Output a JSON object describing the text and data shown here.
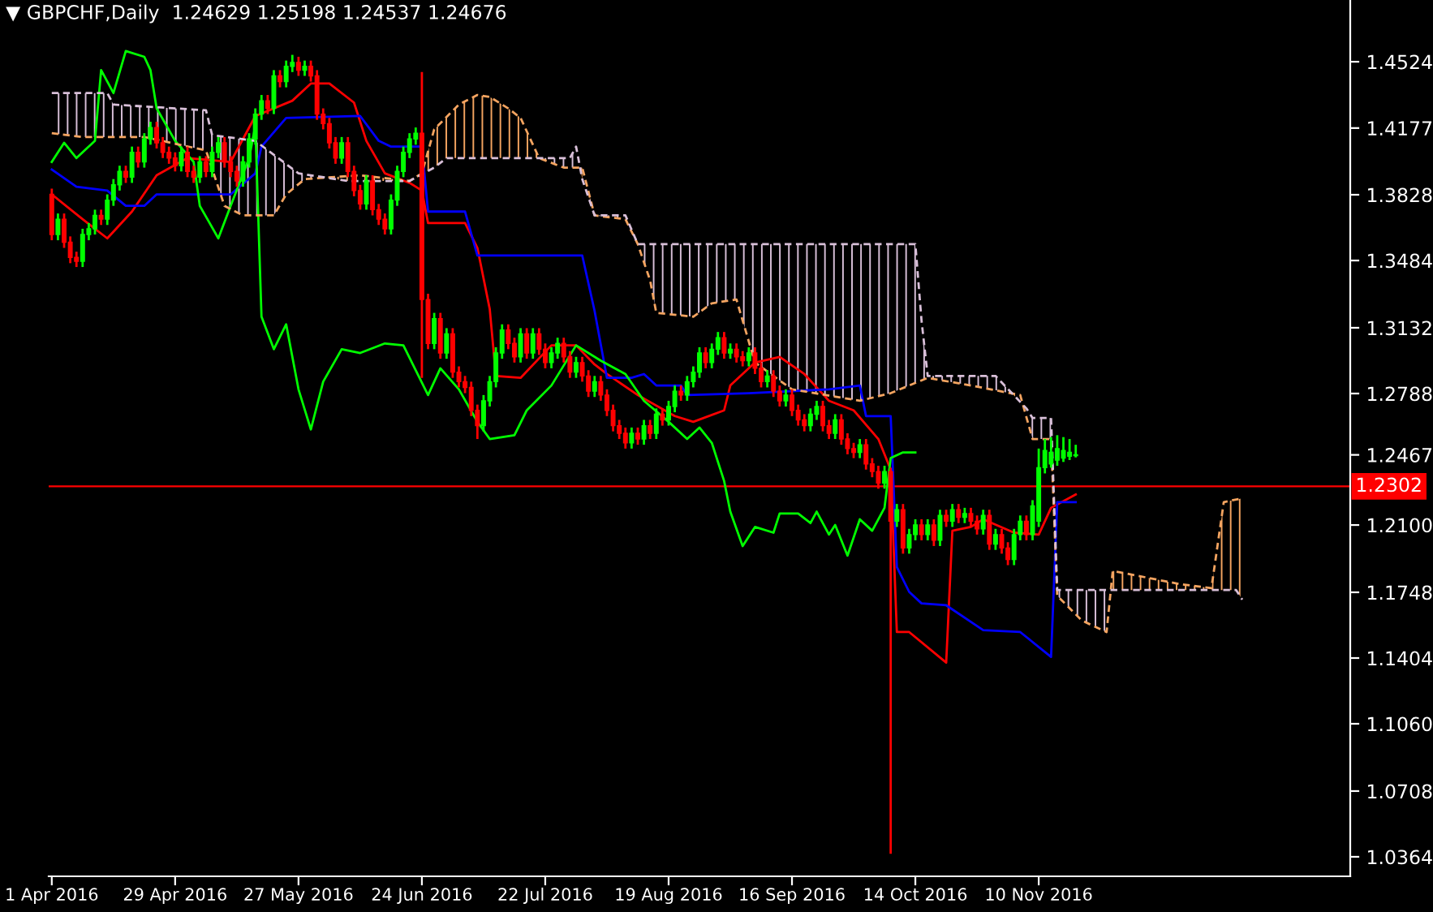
{
  "chart_data": {
    "type": "candlestick",
    "title": "▼ GBPCHF,Daily  1.24629 1.25198 1.24537 1.24676",
    "categories": [
      "1 Apr 2016",
      null,
      null,
      null,
      null,
      null,
      null,
      null,
      null,
      null,
      null,
      null,
      null,
      null,
      null,
      null,
      null,
      null,
      null,
      null,
      "29 Apr 2016",
      null,
      null,
      null,
      null,
      null,
      null,
      null,
      null,
      null,
      null,
      null,
      null,
      null,
      null,
      null,
      null,
      null,
      null,
      null,
      "27 May 2016",
      null,
      null,
      null,
      null,
      null,
      null,
      null,
      null,
      null,
      null,
      null,
      null,
      null,
      null,
      null,
      null,
      null,
      null,
      null,
      "24 Jun 2016",
      null,
      null,
      null,
      null,
      null,
      null,
      null,
      null,
      null,
      null,
      null,
      null,
      null,
      null,
      null,
      null,
      null,
      null,
      null,
      "22 Jul 2016",
      null,
      null,
      null,
      null,
      null,
      null,
      null,
      null,
      null,
      null,
      null,
      null,
      null,
      null,
      null,
      null,
      null,
      null,
      null,
      "19 Aug 2016",
      null,
      null,
      null,
      null,
      null,
      null,
      null,
      null,
      null,
      null,
      null,
      null,
      null,
      null,
      null,
      null,
      null,
      null,
      null,
      "16 Sep 2016",
      null,
      null,
      null,
      null,
      null,
      null,
      null,
      null,
      null,
      null,
      null,
      null,
      null,
      null,
      null,
      null,
      null,
      null,
      null,
      "14 Oct 2016",
      null,
      null,
      null,
      null,
      null,
      null,
      null,
      null,
      null,
      null,
      null,
      null,
      null,
      null,
      null,
      null,
      null,
      null,
      null,
      "10 Nov 2016",
      null,
      null,
      null,
      null,
      null,
      null,
      null,
      null,
      null,
      null,
      null,
      null,
      null,
      null,
      null,
      null,
      null,
      null,
      null,
      null,
      null,
      null,
      null,
      null,
      null,
      null,
      null,
      null,
      null,
      null,
      null,
      null,
      null,
      null,
      null,
      null,
      null,
      null,
      null,
      null,
      null,
      null,
      null,
      null,
      null,
      null,
      null,
      null,
      null,
      null
    ],
    "ohlc": [
      [
        1.383,
        1.386,
        1.359,
        1.362
      ],
      [
        1.362,
        1.373,
        1.359,
        1.37
      ],
      [
        1.37,
        1.373,
        1.355,
        1.358
      ],
      [
        1.358,
        1.361,
        1.347,
        1.35
      ],
      [
        1.35,
        1.353,
        1.345,
        1.348
      ],
      [
        1.348,
        1.365,
        1.345,
        1.362
      ],
      [
        1.362,
        1.368,
        1.359,
        1.365
      ],
      [
        1.365,
        1.375,
        1.362,
        1.372
      ],
      [
        1.372,
        1.375,
        1.367,
        1.37
      ],
      [
        1.37,
        1.383,
        1.367,
        1.38
      ],
      [
        1.38,
        1.391,
        1.377,
        1.388
      ],
      [
        1.388,
        1.398,
        1.385,
        1.395
      ],
      [
        1.395,
        1.398,
        1.389,
        1.392
      ],
      [
        1.392,
        1.408,
        1.389,
        1.405
      ],
      [
        1.405,
        1.408,
        1.397,
        1.4
      ],
      [
        1.4,
        1.415,
        1.397,
        1.412
      ],
      [
        1.412,
        1.421,
        1.409,
        1.418
      ],
      [
        1.418,
        1.421,
        1.407,
        1.41
      ],
      [
        1.41,
        1.413,
        1.402,
        1.405
      ],
      [
        1.405,
        1.408,
        1.399,
        1.402
      ],
      [
        1.402,
        1.405,
        1.395,
        1.398
      ],
      [
        1.398,
        1.408,
        1.395,
        1.405
      ],
      [
        1.405,
        1.408,
        1.392,
        1.395
      ],
      [
        1.395,
        1.398,
        1.389,
        1.392
      ],
      [
        1.392,
        1.403,
        1.389,
        1.4
      ],
      [
        1.4,
        1.403,
        1.392,
        1.395
      ],
      [
        1.395,
        1.408,
        1.392,
        1.405
      ],
      [
        1.405,
        1.413,
        1.402,
        1.41
      ],
      [
        1.41,
        1.413,
        1.397,
        1.4
      ],
      [
        1.4,
        1.403,
        1.392,
        1.395
      ],
      [
        1.395,
        1.398,
        1.387,
        1.39
      ],
      [
        1.39,
        1.403,
        1.387,
        1.4
      ],
      [
        1.4,
        1.415,
        1.397,
        1.412
      ],
      [
        1.412,
        1.428,
        1.409,
        1.425
      ],
      [
        1.425,
        1.435,
        1.422,
        1.432
      ],
      [
        1.432,
        1.435,
        1.425,
        1.428
      ],
      [
        1.428,
        1.448,
        1.425,
        1.445
      ],
      [
        1.445,
        1.448,
        1.439,
        1.442
      ],
      [
        1.442,
        1.453,
        1.439,
        1.45
      ],
      [
        1.45,
        1.456,
        1.447,
        1.452
      ],
      [
        1.452,
        1.455,
        1.445,
        1.448
      ],
      [
        1.448,
        1.453,
        1.445,
        1.45
      ],
      [
        1.45,
        1.453,
        1.442,
        1.445
      ],
      [
        1.445,
        1.448,
        1.422,
        1.425
      ],
      [
        1.425,
        1.428,
        1.417,
        1.42
      ],
      [
        1.42,
        1.423,
        1.407,
        1.41
      ],
      [
        1.41,
        1.413,
        1.399,
        1.402
      ],
      [
        1.402,
        1.413,
        1.399,
        1.41
      ],
      [
        1.41,
        1.413,
        1.392,
        1.395
      ],
      [
        1.395,
        1.398,
        1.382,
        1.385
      ],
      [
        1.385,
        1.388,
        1.375,
        1.378
      ],
      [
        1.378,
        1.393,
        1.375,
        1.39
      ],
      [
        1.39,
        1.393,
        1.372,
        1.375
      ],
      [
        1.375,
        1.378,
        1.367,
        1.37
      ],
      [
        1.37,
        1.373,
        1.362,
        1.365
      ],
      [
        1.365,
        1.383,
        1.362,
        1.38
      ],
      [
        1.38,
        1.398,
        1.377,
        1.395
      ],
      [
        1.395,
        1.408,
        1.392,
        1.405
      ],
      [
        1.405,
        1.415,
        1.402,
        1.412
      ],
      [
        1.412,
        1.418,
        1.409,
        1.415
      ],
      [
        1.415,
        1.447,
        1.287,
        1.328
      ],
      [
        1.328,
        1.331,
        1.302,
        1.305
      ],
      [
        1.305,
        1.321,
        1.302,
        1.318
      ],
      [
        1.318,
        1.321,
        1.297,
        1.3
      ],
      [
        1.3,
        1.313,
        1.297,
        1.31
      ],
      [
        1.31,
        1.313,
        1.287,
        1.29
      ],
      [
        1.29,
        1.293,
        1.282,
        1.285
      ],
      [
        1.285,
        1.288,
        1.279,
        1.282
      ],
      [
        1.282,
        1.285,
        1.267,
        1.27
      ],
      [
        1.27,
        1.273,
        1.255,
        1.262
      ],
      [
        1.262,
        1.278,
        1.259,
        1.275
      ],
      [
        1.275,
        1.288,
        1.272,
        1.285
      ],
      [
        1.285,
        1.303,
        1.282,
        1.3
      ],
      [
        1.3,
        1.315,
        1.297,
        1.312
      ],
      [
        1.312,
        1.315,
        1.302,
        1.305
      ],
      [
        1.305,
        1.308,
        1.295,
        1.298
      ],
      [
        1.298,
        1.313,
        1.295,
        1.31
      ],
      [
        1.31,
        1.313,
        1.297,
        1.3
      ],
      [
        1.3,
        1.313,
        1.297,
        1.31
      ],
      [
        1.31,
        1.313,
        1.299,
        1.302
      ],
      [
        1.302,
        1.305,
        1.292,
        1.295
      ],
      [
        1.295,
        1.303,
        1.292,
        1.3
      ],
      [
        1.3,
        1.308,
        1.297,
        1.305
      ],
      [
        1.305,
        1.308,
        1.295,
        1.298
      ],
      [
        1.298,
        1.301,
        1.287,
        1.29
      ],
      [
        1.29,
        1.298,
        1.287,
        1.295
      ],
      [
        1.295,
        1.298,
        1.285,
        1.288
      ],
      [
        1.288,
        1.291,
        1.277,
        1.28
      ],
      [
        1.28,
        1.288,
        1.277,
        1.285
      ],
      [
        1.285,
        1.288,
        1.275,
        1.278
      ],
      [
        1.278,
        1.281,
        1.267,
        1.27
      ],
      [
        1.27,
        1.273,
        1.259,
        1.262
      ],
      [
        1.262,
        1.265,
        1.255,
        1.258
      ],
      [
        1.258,
        1.261,
        1.25,
        1.253
      ],
      [
        1.253,
        1.261,
        1.25,
        1.258
      ],
      [
        1.258,
        1.261,
        1.252,
        1.255
      ],
      [
        1.255,
        1.265,
        1.252,
        1.262
      ],
      [
        1.262,
        1.265,
        1.255,
        1.258
      ],
      [
        1.258,
        1.271,
        1.255,
        1.268
      ],
      [
        1.268,
        1.271,
        1.262,
        1.265
      ],
      [
        1.265,
        1.275,
        1.262,
        1.272
      ],
      [
        1.272,
        1.283,
        1.269,
        1.28
      ],
      [
        1.28,
        1.283,
        1.275,
        1.278
      ],
      [
        1.278,
        1.288,
        1.275,
        1.285
      ],
      [
        1.285,
        1.293,
        1.282,
        1.29
      ],
      [
        1.29,
        1.303,
        1.287,
        1.3
      ],
      [
        1.3,
        1.303,
        1.292,
        1.295
      ],
      [
        1.295,
        1.305,
        1.292,
        1.302
      ],
      [
        1.302,
        1.311,
        1.299,
        1.308
      ],
      [
        1.308,
        1.311,
        1.297,
        1.3
      ],
      [
        1.3,
        1.305,
        1.297,
        1.302
      ],
      [
        1.302,
        1.305,
        1.295,
        1.298
      ],
      [
        1.298,
        1.301,
        1.293,
        1.296
      ],
      [
        1.296,
        1.303,
        1.293,
        1.3
      ],
      [
        1.3,
        1.303,
        1.289,
        1.292
      ],
      [
        1.292,
        1.295,
        1.282,
        1.285
      ],
      [
        1.285,
        1.291,
        1.282,
        1.288
      ],
      [
        1.288,
        1.291,
        1.277,
        1.28
      ],
      [
        1.28,
        1.283,
        1.272,
        1.275
      ],
      [
        1.275,
        1.281,
        1.272,
        1.278
      ],
      [
        1.278,
        1.281,
        1.267,
        1.27
      ],
      [
        1.27,
        1.273,
        1.262,
        1.265
      ],
      [
        1.265,
        1.268,
        1.259,
        1.262
      ],
      [
        1.262,
        1.271,
        1.259,
        1.268
      ],
      [
        1.268,
        1.275,
        1.265,
        1.272
      ],
      [
        1.272,
        1.275,
        1.259,
        1.262
      ],
      [
        1.262,
        1.265,
        1.255,
        1.258
      ],
      [
        1.258,
        1.268,
        1.255,
        1.265
      ],
      [
        1.265,
        1.268,
        1.252,
        1.255
      ],
      [
        1.255,
        1.258,
        1.247,
        1.25
      ],
      [
        1.25,
        1.253,
        1.245,
        1.248
      ],
      [
        1.248,
        1.255,
        1.245,
        1.252
      ],
      [
        1.252,
        1.255,
        1.239,
        1.242
      ],
      [
        1.242,
        1.245,
        1.235,
        1.238
      ],
      [
        1.238,
        1.241,
        1.229,
        1.232
      ],
      [
        1.232,
        1.241,
        1.229,
        1.238
      ],
      [
        1.238,
        1.24,
        1.038,
        1.212
      ],
      [
        1.212,
        1.221,
        1.209,
        1.218
      ],
      [
        1.218,
        1.221,
        1.195,
        1.198
      ],
      [
        1.198,
        1.208,
        1.195,
        1.205
      ],
      [
        1.205,
        1.213,
        1.202,
        1.21
      ],
      [
        1.21,
        1.213,
        1.202,
        1.205
      ],
      [
        1.205,
        1.213,
        1.202,
        1.21
      ],
      [
        1.21,
        1.213,
        1.199,
        1.202
      ],
      [
        1.202,
        1.218,
        1.199,
        1.215
      ],
      [
        1.215,
        1.218,
        1.209,
        1.212
      ],
      [
        1.212,
        1.221,
        1.209,
        1.218
      ],
      [
        1.218,
        1.221,
        1.211,
        1.214
      ],
      [
        1.214,
        1.219,
        1.211,
        1.216
      ],
      [
        1.216,
        1.219,
        1.209,
        1.212
      ],
      [
        1.212,
        1.215,
        1.205,
        1.208
      ],
      [
        1.208,
        1.218,
        1.205,
        1.215
      ],
      [
        1.215,
        1.218,
        1.197,
        1.2
      ],
      [
        1.2,
        1.208,
        1.197,
        1.205
      ],
      [
        1.205,
        1.208,
        1.195,
        1.198
      ],
      [
        1.198,
        1.201,
        1.189,
        1.192
      ],
      [
        1.192,
        1.208,
        1.189,
        1.205
      ],
      [
        1.205,
        1.215,
        1.202,
        1.212
      ],
      [
        1.212,
        1.215,
        1.202,
        1.205
      ],
      [
        1.205,
        1.223,
        1.202,
        1.22
      ],
      [
        1.212,
        1.25,
        1.209,
        1.24
      ],
      [
        1.24,
        1.255,
        1.237,
        1.249
      ],
      [
        1.242,
        1.256,
        1.24,
        1.248
      ],
      [
        1.244,
        1.257,
        1.241,
        1.25
      ],
      [
        1.245,
        1.256,
        1.243,
        1.249
      ],
      [
        1.246,
        1.255,
        1.244,
        1.248
      ],
      [
        1.24629,
        1.25198,
        1.24537,
        1.24676
      ],
      null,
      null,
      null,
      null,
      null,
      null,
      null,
      null,
      null,
      null,
      null,
      null,
      null,
      null,
      null,
      null,
      null,
      null,
      null,
      null,
      null,
      null,
      null,
      null,
      null,
      null,
      null,
      null,
      null,
      null,
      null,
      null,
      null,
      null,
      null,
      null,
      null,
      null,
      null,
      null,
      null,
      null,
      null,
      null
    ],
    "colors": [
      "#ff0000",
      "#00ff00",
      "#ff0000",
      "#ff0000",
      "#ff0000",
      "#00ff00",
      "#00ff00",
      "#00ff00",
      "#ff0000",
      "#00ff00",
      "#00ff00",
      "#00ff00",
      "#ff0000",
      "#00ff00",
      "#ff0000",
      "#00ff00",
      "#00ff00",
      "#ff0000",
      "#ff0000",
      "#ff0000",
      "#ff0000",
      "#00ff00",
      "#ff0000",
      "#ff0000",
      "#00ff00",
      "#ff0000",
      "#00ff00",
      "#00ff00",
      "#ff0000",
      "#ff0000",
      "#ff0000",
      "#00ff00",
      "#00ff00",
      "#00ff00",
      "#00ff00",
      "#ff0000",
      "#00ff00",
      "#ff0000",
      "#00ff00",
      "#00ff00",
      "#ff0000",
      "#00ff00",
      "#ff0000",
      "#ff0000",
      "#ff0000",
      "#ff0000",
      "#ff0000",
      "#00ff00",
      "#ff0000",
      "#ff0000",
      "#ff0000",
      "#00ff00",
      "#ff0000",
      "#ff0000",
      "#ff0000",
      "#00ff00",
      "#00ff00",
      "#00ff00",
      "#00ff00",
      "#00ff00",
      "#ff0000",
      "#ff0000",
      "#00ff00",
      "#ff0000",
      "#00ff00",
      "#ff0000",
      "#ff0000",
      "#ff0000",
      "#ff0000",
      "#ff0000",
      "#00ff00",
      "#00ff00",
      "#00ff00",
      "#00ff00",
      "#ff0000",
      "#ff0000",
      "#00ff00",
      "#ff0000",
      "#00ff00",
      "#ff0000",
      "#ff0000",
      "#00ff00",
      "#00ff00",
      "#ff0000",
      "#ff0000",
      "#00ff00",
      "#ff0000",
      "#ff0000",
      "#00ff00",
      "#ff0000",
      "#ff0000",
      "#ff0000",
      "#ff0000",
      "#ff0000",
      "#00ff00",
      "#ff0000",
      "#00ff00",
      "#ff0000",
      "#00ff00",
      "#ff0000",
      "#00ff00",
      "#00ff00",
      "#ff0000",
      "#00ff00",
      "#00ff00",
      "#00ff00",
      "#ff0000",
      "#00ff00",
      "#00ff00",
      "#ff0000",
      "#00ff00",
      "#ff0000",
      "#ff0000",
      "#00ff00",
      "#ff0000",
      "#ff0000",
      "#00ff00",
      "#ff0000",
      "#ff0000",
      "#00ff00",
      "#ff0000",
      "#ff0000",
      "#ff0000",
      "#00ff00",
      "#00ff00",
      "#ff0000",
      "#ff0000",
      "#00ff00",
      "#ff0000",
      "#ff0000",
      "#ff0000",
      "#00ff00",
      "#ff0000",
      "#ff0000",
      "#ff0000",
      "#00ff00",
      "#ff0000",
      "#00ff00",
      "#ff0000",
      "#00ff00",
      "#00ff00",
      "#ff0000",
      "#00ff00",
      "#ff0000",
      "#00ff00",
      "#ff0000",
      "#00ff00",
      "#ff0000",
      "#00ff00",
      "#ff0000",
      "#ff0000",
      "#00ff00",
      "#ff0000",
      "#00ff00",
      "#ff0000",
      "#ff0000",
      "#00ff00",
      "#00ff00",
      "#ff0000",
      "#00ff00",
      "#00ff00",
      "#00ff00",
      "#00ff00",
      "#00ff00",
      "#00ff00",
      "#00ff00",
      "#00ff00",
      null,
      null,
      null,
      null,
      null,
      null,
      null,
      null,
      null,
      null,
      null,
      null,
      null,
      null,
      null,
      null,
      null,
      null,
      null,
      null,
      null,
      null,
      null,
      null,
      null,
      null,
      null,
      null,
      null,
      null,
      null,
      null,
      null,
      null,
      null,
      null,
      null,
      null,
      null,
      null,
      null,
      null,
      null,
      null
    ],
    "series": [
      {
        "type": "line",
        "color": "#ff0000",
        "line_style": "solid",
        "values": [
          1.383,
          null,
          null,
          null,
          null,
          1.37,
          null,
          null,
          null,
          1.36,
          null,
          null,
          null,
          1.374,
          null,
          null,
          null,
          1.393,
          null,
          null,
          null,
          null,
          1.402,
          null,
          null,
          null,
          null,
          null,
          null,
          1.4,
          null,
          null,
          null,
          1.424,
          null,
          null,
          null,
          null,
          null,
          1.432,
          null,
          null,
          1.441,
          null,
          null,
          1.441,
          null,
          null,
          null,
          1.431,
          null,
          1.411,
          null,
          null,
          1.394,
          null,
          null,
          null,
          1.389,
          null,
          1.385,
          1.368,
          null,
          null,
          null,
          null,
          null,
          1.368,
          null,
          1.355,
          null,
          1.323,
          1.288,
          null,
          null,
          null,
          1.287,
          null,
          null,
          null,
          null,
          1.304,
          null,
          null,
          null,
          1.304,
          null,
          null,
          1.294,
          null,
          1.289,
          null,
          null,
          null,
          null,
          1.278,
          null,
          null,
          null,
          null,
          null,
          1.267,
          null,
          null,
          1.264,
          null,
          null,
          null,
          null,
          1.27,
          1.283,
          null,
          null,
          null,
          1.295,
          null,
          null,
          null,
          1.298,
          null,
          null,
          null,
          1.289,
          null,
          null,
          null,
          1.275,
          null,
          null,
          null,
          1.27,
          null,
          null,
          null,
          1.255,
          null,
          1.239,
          1.154,
          null,
          1.154,
          null,
          null,
          null,
          null,
          null,
          1.138,
          1.207,
          null,
          null,
          1.209,
          null,
          1.213,
          null,
          null,
          null,
          null,
          1.206,
          null,
          null,
          null,
          1.205,
          null,
          1.219,
          null,
          null,
          null,
          1.226,
          null,
          null,
          null,
          null,
          null,
          null,
          null,
          null,
          null,
          null,
          null,
          null,
          null,
          null,
          null,
          null,
          null,
          null,
          null,
          null,
          null,
          null,
          null,
          null,
          null,
          null,
          null,
          null,
          null,
          null,
          null,
          null,
          null,
          null,
          null,
          null,
          null,
          null,
          null,
          null,
          null,
          null,
          null,
          null
        ]
      },
      {
        "type": "line",
        "color": "#0000ff",
        "line_style": "solid",
        "values": [
          1.396,
          null,
          null,
          null,
          1.387,
          null,
          null,
          null,
          null,
          1.385,
          null,
          null,
          1.377,
          null,
          null,
          1.377,
          null,
          1.383,
          null,
          null,
          null,
          null,
          null,
          null,
          null,
          null,
          null,
          null,
          null,
          1.383,
          null,
          null,
          null,
          1.394,
          1.408,
          null,
          null,
          null,
          1.423,
          null,
          null,
          null,
          null,
          null,
          null,
          null,
          null,
          null,
          null,
          null,
          1.424,
          null,
          null,
          1.411,
          null,
          1.408,
          null,
          null,
          null,
          null,
          1.408,
          1.374,
          null,
          null,
          null,
          null,
          null,
          1.374,
          null,
          1.351,
          null,
          null,
          null,
          null,
          null,
          null,
          null,
          null,
          null,
          null,
          null,
          null,
          null,
          null,
          null,
          null,
          1.351,
          null,
          1.322,
          null,
          1.287,
          null,
          null,
          null,
          1.287,
          null,
          1.289,
          null,
          1.283,
          null,
          null,
          null,
          1.283,
          1.278,
          null,
          null,
          null,
          null,
          null,
          null,
          null,
          null,
          null,
          1.279,
          null,
          null,
          null,
          null,
          null,
          null,
          null,
          null,
          null,
          null,
          null,
          null,
          1.281,
          null,
          null,
          null,
          null,
          1.283,
          1.267,
          null,
          null,
          null,
          1.267,
          1.188,
          null,
          1.175,
          null,
          1.169,
          null,
          null,
          null,
          1.168,
          null,
          null,
          null,
          null,
          null,
          1.155,
          null,
          null,
          null,
          null,
          null,
          1.154,
          null,
          null,
          null,
          null,
          1.141,
          1.222,
          null,
          null,
          1.222,
          null,
          null,
          null,
          null,
          null,
          null,
          null,
          null,
          null,
          null,
          null,
          null,
          null,
          null,
          null,
          null,
          null,
          null,
          null,
          null,
          null,
          null,
          null,
          null,
          null,
          null,
          null,
          null,
          null,
          null,
          null,
          null,
          null,
          null,
          null,
          null,
          null,
          null,
          null,
          null,
          null,
          null,
          null,
          null
        ]
      },
      {
        "type": "line",
        "color": "#00ff00",
        "line_style": "solid",
        "values": [
          1.4,
          null,
          1.41,
          null,
          1.402,
          null,
          null,
          1.411,
          1.448,
          null,
          1.436,
          null,
          1.458,
          null,
          null,
          1.455,
          1.448,
          1.428,
          null,
          null,
          1.411,
          null,
          null,
          1.4,
          1.377,
          null,
          null,
          1.36,
          null,
          1.377,
          null,
          null,
          1.402,
          1.419,
          1.319,
          null,
          1.302,
          null,
          1.315,
          null,
          1.281,
          null,
          1.26,
          null,
          1.285,
          null,
          null,
          1.302,
          null,
          null,
          1.3,
          null,
          null,
          null,
          1.305,
          null,
          null,
          1.304,
          null,
          null,
          null,
          1.278,
          null,
          1.292,
          null,
          null,
          1.281,
          null,
          null,
          1.264,
          null,
          1.255,
          null,
          null,
          null,
          1.257,
          null,
          1.27,
          null,
          null,
          null,
          1.283,
          null,
          null,
          null,
          1.304,
          null,
          null,
          null,
          1.296,
          null,
          null,
          null,
          1.289,
          null,
          null,
          1.275,
          null,
          null,
          null,
          1.264,
          null,
          null,
          1.255,
          null,
          1.261,
          null,
          1.253,
          null,
          1.233,
          1.217,
          null,
          1.199,
          null,
          1.209,
          null,
          null,
          1.206,
          1.216,
          null,
          null,
          1.216,
          null,
          1.211,
          1.217,
          null,
          1.205,
          1.21,
          null,
          1.194,
          null,
          1.213,
          null,
          1.207,
          null,
          1.219,
          1.245,
          null,
          1.248,
          null,
          1.248,
          null,
          null,
          null,
          null,
          null,
          null,
          null,
          null,
          null,
          null,
          null,
          null,
          null,
          null,
          null,
          null,
          null,
          null,
          null,
          null,
          null,
          null,
          null,
          null,
          null,
          null,
          null,
          null,
          null,
          null,
          null,
          null,
          null,
          null,
          null,
          null,
          null,
          null,
          null,
          null,
          null,
          null,
          null,
          null,
          null,
          null,
          null,
          null,
          null,
          null,
          null,
          null,
          null,
          null,
          null,
          null,
          null,
          null,
          null,
          null,
          null,
          null,
          null,
          null,
          null,
          null,
          null,
          null,
          null,
          null
        ]
      },
      {
        "type": "line",
        "color": "#f4a460",
        "line_style": "dashed",
        "values": [
          1.415,
          null,
          null,
          null,
          null,
          1.413,
          null,
          null,
          null,
          null,
          null,
          null,
          null,
          null,
          null,
          1.413,
          null,
          null,
          null,
          null,
          null,
          null,
          null,
          null,
          null,
          1.406,
          null,
          null,
          1.377,
          null,
          null,
          1.372,
          null,
          null,
          null,
          null,
          1.372,
          null,
          1.383,
          null,
          null,
          1.391,
          null,
          null,
          null,
          null,
          null,
          null,
          null,
          null,
          1.393,
          null,
          null,
          null,
          null,
          null,
          null,
          null,
          1.39,
          null,
          1.394,
          null,
          1.417,
          null,
          null,
          null,
          1.43,
          null,
          null,
          1.435,
          null,
          1.434,
          null,
          null,
          1.428,
          null,
          1.423,
          null,
          null,
          1.402,
          null,
          null,
          null,
          1.397,
          null,
          null,
          1.397,
          null,
          1.372,
          null,
          null,
          null,
          null,
          1.37,
          null,
          1.357,
          null,
          1.338,
          1.321,
          null,
          null,
          null,
          null,
          null,
          1.319,
          null,
          null,
          1.326,
          null,
          null,
          null,
          1.328,
          null,
          null,
          1.295,
          null,
          null,
          null,
          null,
          null,
          1.281,
          null,
          null,
          null,
          null,
          null,
          null,
          null,
          null,
          null,
          null,
          1.275,
          null,
          null,
          null,
          null,
          1.279,
          null,
          null,
          null,
          null,
          null,
          1.287,
          null,
          null,
          null,
          null,
          null,
          null,
          1.283,
          null,
          null,
          null,
          null,
          null,
          null,
          null,
          1.278,
          null,
          1.255,
          null,
          null,
          1.255,
          1.173,
          null,
          null,
          null,
          1.16,
          null,
          null,
          null,
          1.154,
          1.186,
          null,
          null,
          null,
          null,
          null,
          null,
          null,
          null,
          null,
          null,
          1.179,
          null,
          null,
          null,
          null,
          1.177,
          null,
          1.222,
          null,
          null,
          1.224,
          null,
          null,
          null,
          null,
          null,
          null,
          null,
          null,
          null,
          null,
          null,
          null,
          null,
          null,
          null,
          null,
          null
        ]
      },
      {
        "type": "line",
        "color": "#d8bfd8",
        "line_style": "dashed",
        "values": [
          1.436,
          null,
          null,
          null,
          null,
          null,
          null,
          null,
          null,
          1.436,
          1.43,
          null,
          null,
          null,
          null,
          null,
          null,
          null,
          null,
          null,
          null,
          null,
          null,
          null,
          null,
          1.427,
          1.414,
          null,
          null,
          null,
          null,
          null,
          null,
          1.411,
          null,
          null,
          null,
          null,
          null,
          null,
          1.394,
          null,
          null,
          null,
          null,
          null,
          null,
          null,
          1.39,
          null,
          null,
          null,
          null,
          null,
          null,
          null,
          null,
          null,
          1.39,
          null,
          null,
          null,
          1.397,
          null,
          1.402,
          null,
          null,
          null,
          null,
          null,
          null,
          null,
          null,
          null,
          null,
          null,
          null,
          null,
          null,
          null,
          null,
          null,
          null,
          null,
          1.402,
          1.408,
          1.391,
          null,
          1.372,
          null,
          null,
          null,
          null,
          1.372,
          null,
          1.357,
          null,
          null,
          null,
          null,
          null,
          null,
          null,
          null,
          null,
          null,
          null,
          null,
          null,
          null,
          null,
          null,
          null,
          null,
          null,
          null,
          null,
          null,
          null,
          null,
          null,
          null,
          null,
          null,
          null,
          null,
          null,
          null,
          null,
          null,
          null,
          null,
          null,
          null,
          null,
          null,
          null,
          null,
          null,
          null,
          1.357,
          1.317,
          1.288,
          null,
          null,
          null,
          null,
          null,
          null,
          null,
          null,
          null,
          null,
          1.288,
          null,
          null,
          null,
          null,
          1.271,
          1.266,
          null,
          null,
          1.266,
          1.176,
          null,
          null,
          null,
          null,
          null,
          null,
          null,
          null,
          null,
          null,
          null,
          null,
          null,
          null,
          null,
          null,
          null,
          null,
          null,
          null,
          null,
          null,
          null,
          null,
          null,
          null,
          null,
          null,
          1.176,
          1.171,
          null,
          null,
          null,
          null,
          null,
          null,
          null,
          null,
          null,
          null,
          null,
          null,
          null,
          null,
          null,
          null,
          null
        ]
      }
    ],
    "ylim": [
      1.0262,
      1.4847
    ],
    "yticks": [
      1.4524,
      1.4177,
      1.3828,
      1.3484,
      1.3132,
      1.2788,
      1.2467,
      {
        "value": 1.21,
        "label": "1.2100"
      },
      1.1748,
      1.1404,
      {
        "value": 1.106,
        "label": "1.1060"
      },
      1.0708,
      1.0364
    ],
    "ref_lines": [
      {
        "axis": "y",
        "value": 1.2302,
        "label": "1.2302",
        "color": "#ff0000",
        "line_style": "solid"
      }
    ]
  }
}
